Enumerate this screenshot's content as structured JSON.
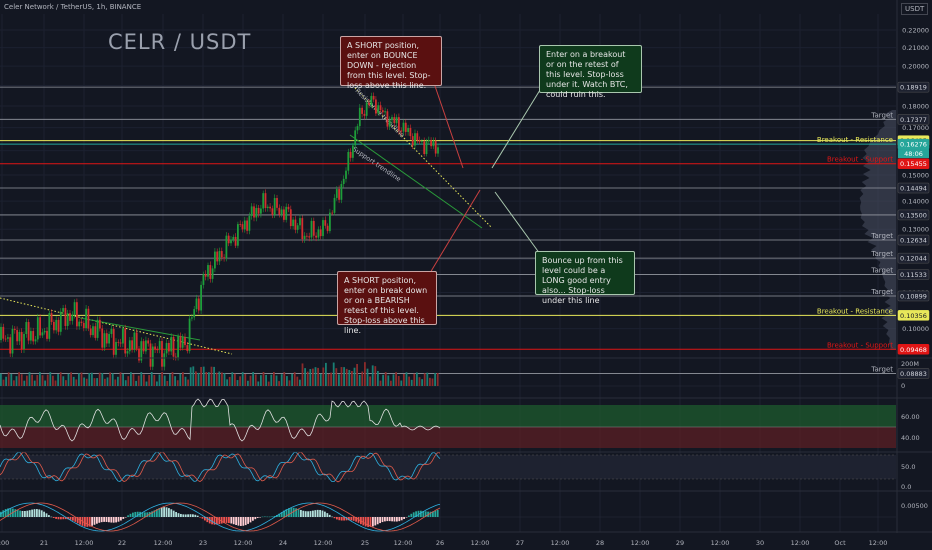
{
  "header": {
    "title": "Celer Network / TetherUS, 1h, BINANCE"
  },
  "big_title": "CELR  / USDT",
  "currency_badge": "USDT",
  "notes": [
    {
      "id": "short-top",
      "text": "A SHORT position, enter on BOUNCE DOWN - rejection from this level. Stop-loss above this line.",
      "color": "red"
    },
    {
      "id": "breakout-top",
      "text": "Enter on a breakout or on the retest of this level. Stop-loss under it. Watch BTC, could ruin this.",
      "color": "green"
    },
    {
      "id": "short-bottom",
      "text": "A SHORT position, enter on break down or on a BEARISH retest of this level. Stop-loss above this line.",
      "color": "red"
    },
    {
      "id": "bounce-bottom",
      "text": "Bounce up from this level could be a LONG good entry also... Stop-loss under this line",
      "color": "green"
    }
  ],
  "colors": {
    "bg": "#131722",
    "up": "#26a69a",
    "down": "#ef5350",
    "green_candle": "#1e8a3a",
    "red_candle": "#c62828",
    "yellow": "#e8e85a",
    "resistance": "#e8e85a",
    "support": "#e01515"
  },
  "chart_data": {
    "type": "candlestick",
    "price_axis": {
      "ticks": [
        "0.22000",
        "0.21000",
        "0.20000",
        "0.19000",
        "0.18000",
        "0.17000",
        "0.16000",
        "0.15000",
        "0.14000",
        "0.13000",
        "0.12000",
        "0.11000",
        "0.10000"
      ],
      "range": [
        0.088,
        0.225
      ],
      "scale": "log"
    },
    "time_axis": {
      "ticks": [
        "2:00",
        "21",
        "12:00",
        "22",
        "12:00",
        "23",
        "12:00",
        "24",
        "12:00",
        "25",
        "12:00",
        "26",
        "12:00",
        "27",
        "12:00",
        "28",
        "12:00",
        "29",
        "12:00",
        "30",
        "12:00",
        "Oct",
        "12:00"
      ]
    },
    "levels": [
      {
        "value": 0.18919,
        "label": "",
        "tag": "0.18919",
        "color": "#9598a1"
      },
      {
        "value": 0.17377,
        "label": "Target",
        "tag": "0.17377",
        "color": "#9598a1"
      },
      {
        "value": 0.16425,
        "label": "",
        "tag": "0.16425",
        "color": "#e8e85a"
      },
      {
        "value": 0.16276,
        "label": "Breakout - Resistance",
        "tag": "0.16276",
        "sub": "48:06",
        "color": "#26a69a"
      },
      {
        "value": 0.15455,
        "label": "Breakout - Support",
        "tag": "0.15455",
        "color": "#e01515"
      },
      {
        "value": 0.14494,
        "label": "",
        "tag": "0.14494",
        "color": "#9598a1"
      },
      {
        "value": 0.135,
        "label": "",
        "tag": "0.13500",
        "color": "#9598a1"
      },
      {
        "value": 0.12634,
        "label": "Target",
        "tag": "0.12634",
        "color": "#9598a1"
      },
      {
        "value": 0.12044,
        "label": "Target",
        "tag": "0.12044",
        "color": "#9598a1"
      },
      {
        "value": 0.11533,
        "label": "Target",
        "tag": "0.11533",
        "color": "#9598a1"
      },
      {
        "value": 0.10899,
        "label": "Target",
        "tag": "0.10899",
        "color": "#9598a1"
      },
      {
        "value": 0.10356,
        "label": "Breakout - Resistance",
        "tag": "0.10356",
        "color": "#e8e85a"
      },
      {
        "value": 0.09468,
        "label": "Breakout - Support",
        "tag": "0.09468",
        "color": "#e01515"
      },
      {
        "value": 0.08883,
        "label": "Target",
        "tag": "0.08883",
        "color": "#9598a1"
      }
    ],
    "trendline_labels": [
      "Resistance trendline",
      "Support trendline"
    ],
    "volume_axis": [
      "200M",
      "0"
    ],
    "rsi_axis": [
      "60.00",
      "40.00"
    ],
    "stoch_axis": [
      "50.0",
      "0.0"
    ],
    "macd_axis": [
      "0.00500"
    ]
  }
}
